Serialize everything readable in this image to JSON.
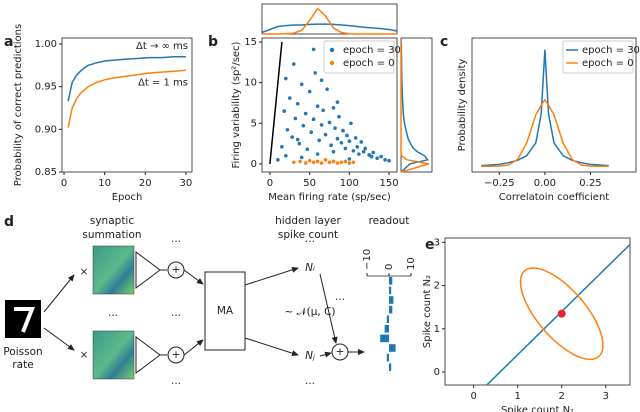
{
  "chart_data": [
    {
      "type": "line",
      "label": "a",
      "xlabel": "Epoch",
      "ylabel": "Probability of correct predictions",
      "legend": "inline",
      "x": [
        1,
        2,
        3,
        4,
        5,
        6,
        8,
        10,
        12,
        15,
        18,
        21,
        24,
        27,
        30
      ],
      "series": [
        {
          "name": "Δt → ∞ ms",
          "color": "#1f77b4",
          "values": [
            0.933,
            0.955,
            0.963,
            0.968,
            0.972,
            0.975,
            0.978,
            0.98,
            0.981,
            0.982,
            0.983,
            0.984,
            0.984,
            0.985,
            0.985
          ]
        },
        {
          "name": "Δt = 1 ms",
          "color": "#ff7f0e",
          "values": [
            0.902,
            0.925,
            0.935,
            0.942,
            0.946,
            0.95,
            0.955,
            0.958,
            0.96,
            0.962,
            0.964,
            0.966,
            0.967,
            0.968,
            0.969
          ]
        }
      ],
      "xlim": [
        -0.5,
        31.5
      ],
      "ylim": [
        0.85,
        1.007
      ],
      "xticks": [
        0,
        10,
        20,
        30
      ],
      "yticks": [
        {
          "value": 0.85,
          "label": "0.85"
        },
        {
          "value": 0.9,
          "label": "0.90"
        },
        {
          "value": 0.95,
          "label": "0.95"
        },
        {
          "value": 1,
          "label": "1.00"
        }
      ]
    },
    {
      "type": "scatter",
      "label": "b",
      "xlabel": "Mean firing rate (sp/sec)",
      "ylabel": "Firing variability (sp²/sec)",
      "legend": "upper right",
      "series": [
        {
          "name": "epoch = 30",
          "color": "#1f77b4",
          "x": [
            15,
            18,
            20,
            22,
            25,
            28,
            30,
            32,
            35,
            37,
            40,
            42,
            45,
            47,
            50,
            52,
            55,
            57,
            60,
            62,
            65,
            67,
            70,
            72,
            75,
            77,
            80,
            82,
            85,
            87,
            90,
            92,
            95,
            97,
            100,
            102,
            105,
            108,
            110,
            112,
            115,
            118,
            120,
            125,
            128,
            130,
            135,
            140,
            145,
            150,
            20,
            40,
            60,
            80,
            100,
            55,
            10,
            35,
            65,
            85
          ],
          "values": [
            2.1,
            6.5,
            10.5,
            4.2,
            8.1,
            3.3,
            12.3,
            5.6,
            7.4,
            2.5,
            9.8,
            4.7,
            6.2,
            1.8,
            8.9,
            3.9,
            5.5,
            11.2,
            7.1,
            2.9,
            4.8,
            6.6,
            3.6,
            9.2,
            5.1,
            2.3,
            6.9,
            4.4,
            3.1,
            5.8,
            2.6,
            4.1,
            1.9,
            3.5,
            2.8,
            5.0,
            1.6,
            3.2,
            2.1,
            1.2,
            2.7,
            1.5,
            1.9,
            1.1,
            0.9,
            1.4,
            0.7,
            0.9,
            0.5,
            0.4,
            1.0,
            0.8,
            1.2,
            1.5,
            0.6,
            14.1,
            0.5,
            3.0,
            10.3,
            7.6
          ]
        },
        {
          "name": "epoch = 0",
          "color": "#ff7f0e",
          "x": [
            30,
            38,
            45,
            50,
            55,
            60,
            65,
            70,
            75,
            80,
            85,
            90,
            95,
            100,
            105
          ],
          "values": [
            0.2,
            0.3,
            0.1,
            0.4,
            0.2,
            0.3,
            0.1,
            0.5,
            0.2,
            0.3,
            0.1,
            0.2,
            0.3,
            0.1,
            0.2
          ]
        }
      ],
      "reference_line": {
        "color": "#000000",
        "x": [
          0,
          15
        ],
        "values": [
          0,
          15
        ]
      },
      "xlim": [
        -10,
        160
      ],
      "ylim": [
        -1,
        15.5
      ],
      "xticks": [
        0,
        50,
        100,
        150
      ],
      "yticks": [
        0,
        5,
        10,
        15
      ]
    },
    {
      "type": "line",
      "x": [
        -10,
        0,
        10,
        20,
        30,
        40,
        50,
        60,
        70,
        80,
        90,
        100,
        110,
        120,
        130,
        140,
        150,
        160
      ],
      "series": [
        {
          "color": "#1f77b4",
          "values": [
            0.05,
            0.15,
            0.25,
            0.28,
            0.3,
            0.3,
            0.32,
            0.33,
            0.33,
            0.32,
            0.3,
            0.28,
            0.25,
            0.22,
            0.2,
            0.18,
            0.15,
            0.1
          ]
        },
        {
          "color": "#ff7f0e",
          "values": [
            0,
            0,
            0,
            0.01,
            0.03,
            0.12,
            0.45,
            0.85,
            0.6,
            0.2,
            0.05,
            0.01,
            0,
            0,
            0,
            0,
            0,
            0
          ]
        }
      ],
      "xlim": [
        -10,
        160
      ],
      "ylim": [
        0,
        1
      ]
    },
    {
      "type": "line",
      "orientation": "vertical",
      "x": [
        -1,
        0,
        0.5,
        1,
        1.5,
        2,
        3,
        4,
        5,
        6,
        8,
        10,
        12,
        15
      ],
      "series": [
        {
          "color": "#1f77b4",
          "values": [
            0,
            0.3,
            0.9,
            0.8,
            0.55,
            0.4,
            0.25,
            0.18,
            0.12,
            0.08,
            0.05,
            0.03,
            0.02,
            0.01
          ]
        },
        {
          "color": "#ff7f0e",
          "values": [
            0,
            0.95,
            0.2,
            0.02,
            0,
            0,
            0,
            0,
            0,
            0,
            0,
            0,
            0,
            0
          ]
        }
      ],
      "xlim": [
        -1,
        15.5
      ],
      "ylim": [
        0,
        1.05
      ]
    },
    {
      "type": "line",
      "label": "c",
      "xlabel": "Correlatoin coefficient",
      "ylabel": "Probability density",
      "legend": "upper right",
      "x": [
        -0.35,
        -0.3,
        -0.25,
        -0.2,
        -0.15,
        -0.1,
        -0.05,
        -0.02,
        0,
        0.02,
        0.05,
        0.1,
        0.15,
        0.2,
        0.25,
        0.3,
        0.35
      ],
      "series": [
        {
          "name": "epoch = 30",
          "color": "#1f77b4",
          "values": [
            0.05,
            0.1,
            0.15,
            0.3,
            0.5,
            0.9,
            2,
            4.5,
            10,
            4.5,
            2,
            0.9,
            0.5,
            0.3,
            0.15,
            0.1,
            0.05
          ]
        },
        {
          "name": "epoch = 0",
          "color": "#ff7f0e",
          "values": [
            0,
            0,
            0.01,
            0.1,
            0.57,
            2.0,
            4.4,
            5.24,
            5.7,
            5.24,
            4.4,
            2.0,
            0.57,
            0.1,
            0.01,
            0,
            0
          ]
        }
      ],
      "xlim": [
        -0.4,
        0.5
      ],
      "ylim": [
        -0.5,
        11
      ],
      "xticks": [
        {
          "value": -0.25,
          "label": "−0.25"
        },
        {
          "value": 0,
          "label": "0.00"
        },
        {
          "value": 0.25,
          "label": "0.25"
        }
      ]
    },
    {
      "type": "barh",
      "color": "#1f77b4",
      "values": [
        1.5,
        1,
        2,
        1.5,
        -1,
        -2,
        -4,
        3,
        -1,
        1
      ],
      "xlim": [
        -10,
        10
      ],
      "xticks": [
        {
          "value": -10,
          "label": "−10"
        },
        0,
        10
      ]
    },
    {
      "type": "line",
      "label": "e",
      "xlabel": "Spike count N₁",
      "ylabel": "Spike count N₂",
      "series": [
        {
          "color": "#1f77b4",
          "x": [
            0.3,
            3.55
          ],
          "values": [
            -0.3,
            2.95
          ]
        }
      ],
      "ellipse": {
        "color": "#ff7f0e",
        "center": [
          2,
          1.35
        ],
        "radii": [
          1.3,
          0.55
        ],
        "angle": -50
      },
      "point": {
        "color": "#e8222a",
        "x": 2,
        "y": 1.35
      },
      "xlim": [
        -0.65,
        3.55
      ],
      "ylim": [
        -0.3,
        3.1
      ],
      "xticks": [
        0,
        1,
        2,
        3
      ],
      "yticks": [
        0,
        1,
        2,
        3
      ]
    }
  ],
  "diagram": {
    "label": "d",
    "synaptic_summation": [
      "synaptic",
      "summation"
    ],
    "hidden_layer": [
      "hidden layer",
      "spike count"
    ],
    "readout": "readout",
    "input": [
      "Poisson",
      "rate"
    ],
    "box": "MA",
    "ni": "Nᵢ",
    "nj": "Nⱼ",
    "distribution": "~ 𝒩(μ, C)",
    "multiply": "×",
    "plus": "+",
    "ellipsis": "···"
  }
}
